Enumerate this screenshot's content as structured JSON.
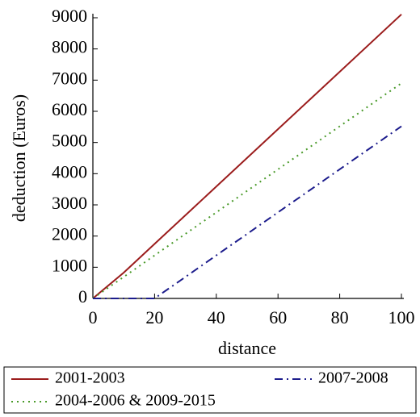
{
  "chart_data": {
    "type": "line",
    "xlabel": "distance",
    "ylabel": "deduction (Euros)",
    "x": [
      0,
      10,
      20,
      100
    ],
    "series": [
      {
        "name": "2001-2003",
        "color": "#9b1c1c",
        "dash": "solid",
        "values": [
          0,
          828,
          1748,
          9108
        ]
      },
      {
        "name": "2004-2006 & 2009-2015",
        "color": "#4a9a2a",
        "dash": "dotted",
        "values": [
          0,
          690,
          1380,
          6900
        ]
      },
      {
        "name": "2007-2008",
        "color": "#1c1c8c",
        "dash": "dashdot",
        "values": [
          0,
          0,
          0,
          5520
        ]
      }
    ],
    "xlim": [
      0,
      100
    ],
    "xticks": [
      0,
      20,
      40,
      60,
      80,
      100
    ],
    "ylim": [
      0,
      9000
    ],
    "yticks": [
      0,
      1000,
      2000,
      3000,
      4000,
      5000,
      6000,
      7000,
      8000,
      9000
    ],
    "legend": "bottom"
  }
}
